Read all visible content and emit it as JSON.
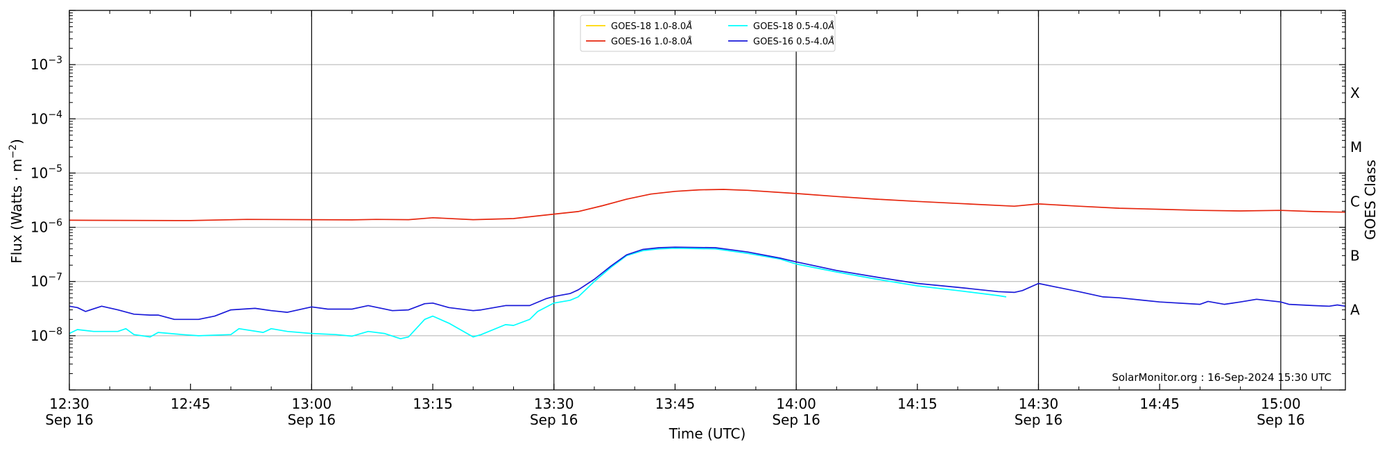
{
  "chart_data": {
    "type": "line",
    "xlabel": "Time (UTC)",
    "ylabel": "Flux (Watts · m",
    "ylabel_exponent": "−2",
    "ylabel_close": ")",
    "y2label": "GOES Class",
    "yscale": "log",
    "ylim": [
      1e-09,
      0.01
    ],
    "xlim": [
      "12:30",
      "15:08"
    ],
    "grid": true,
    "legend_position": "top-center",
    "footer": "SolarMonitor.org : 16-Sep-2024 15:30 UTC",
    "y_ticks": [
      {
        "value": -8,
        "base": "10",
        "exp": "−8"
      },
      {
        "value": -7,
        "base": "10",
        "exp": "−7"
      },
      {
        "value": -6,
        "base": "10",
        "exp": "−6"
      },
      {
        "value": -5,
        "base": "10",
        "exp": "−5"
      },
      {
        "value": -4,
        "base": "10",
        "exp": "−4"
      },
      {
        "value": -3,
        "base": "10",
        "exp": "−3"
      }
    ],
    "x_ticks": [
      {
        "time": "12:30",
        "label": "12:30",
        "sub": "Sep 16",
        "major": true
      },
      {
        "time": "12:45",
        "label": "12:45",
        "sub": "",
        "major": false
      },
      {
        "time": "13:00",
        "label": "13:00",
        "sub": "Sep 16",
        "major": true
      },
      {
        "time": "13:15",
        "label": "13:15",
        "sub": "",
        "major": false
      },
      {
        "time": "13:30",
        "label": "13:30",
        "sub": "Sep 16",
        "major": true
      },
      {
        "time": "13:45",
        "label": "13:45",
        "sub": "",
        "major": false
      },
      {
        "time": "14:00",
        "label": "14:00",
        "sub": "Sep 16",
        "major": true
      },
      {
        "time": "14:15",
        "label": "14:15",
        "sub": "",
        "major": false
      },
      {
        "time": "14:30",
        "label": "14:30",
        "sub": "Sep 16",
        "major": true
      },
      {
        "time": "14:45",
        "label": "14:45",
        "sub": "",
        "major": false
      },
      {
        "time": "15:00",
        "label": "15:00",
        "sub": "Sep 16",
        "major": true
      }
    ],
    "goes_classes": [
      {
        "label": "A",
        "flux": 3e-08
      },
      {
        "label": "B",
        "flux": 3e-07
      },
      {
        "label": "C",
        "flux": 3e-06
      },
      {
        "label": "M",
        "flux": 3e-05
      },
      {
        "label": "X",
        "flux": 0.0003
      }
    ],
    "series": [
      {
        "name": "GOES-18 1.0-8.0",
        "unit": "Å",
        "color": "#ffd700",
        "points": []
      },
      {
        "name": "GOES-16 1.0-8.0",
        "unit": "Å",
        "color": "#e6260e",
        "points": [
          [
            "12:30",
            1.35e-06
          ],
          [
            "12:45",
            1.33e-06
          ],
          [
            "12:52",
            1.4e-06
          ],
          [
            "13:00",
            1.38e-06
          ],
          [
            "13:05",
            1.37e-06
          ],
          [
            "13:08",
            1.4e-06
          ],
          [
            "13:12",
            1.38e-06
          ],
          [
            "13:15",
            1.5e-06
          ],
          [
            "13:20",
            1.38e-06
          ],
          [
            "13:25",
            1.45e-06
          ],
          [
            "13:30",
            1.75e-06
          ],
          [
            "13:33",
            1.95e-06
          ],
          [
            "13:36",
            2.5e-06
          ],
          [
            "13:39",
            3.3e-06
          ],
          [
            "13:42",
            4.1e-06
          ],
          [
            "13:45",
            4.6e-06
          ],
          [
            "13:48",
            4.9e-06
          ],
          [
            "13:51",
            5e-06
          ],
          [
            "13:54",
            4.8e-06
          ],
          [
            "14:00",
            4.2e-06
          ],
          [
            "14:05",
            3.7e-06
          ],
          [
            "14:10",
            3.3e-06
          ],
          [
            "14:15",
            3e-06
          ],
          [
            "14:20",
            2.75e-06
          ],
          [
            "14:27",
            2.45e-06
          ],
          [
            "14:30",
            2.7e-06
          ],
          [
            "14:35",
            2.45e-06
          ],
          [
            "14:40",
            2.25e-06
          ],
          [
            "14:45",
            2.15e-06
          ],
          [
            "14:50",
            2.05e-06
          ],
          [
            "14:55",
            2e-06
          ],
          [
            "15:00",
            2.05e-06
          ],
          [
            "15:04",
            1.95e-06
          ],
          [
            "15:08",
            1.9e-06
          ]
        ]
      },
      {
        "name": "GOES-18 0.5-4.0",
        "unit": "Å",
        "color": "#00ffff",
        "points": [
          [
            "12:30",
            1.1e-08
          ],
          [
            "12:31",
            1.3e-08
          ],
          [
            "12:33",
            1.2e-08
          ],
          [
            "12:36",
            1.2e-08
          ],
          [
            "12:37",
            1.35e-08
          ],
          [
            "12:38",
            1.05e-08
          ],
          [
            "12:40",
            9.5e-09
          ],
          [
            "12:41",
            1.15e-08
          ],
          [
            "12:44",
            1.05e-08
          ],
          [
            "12:46",
            1e-08
          ],
          [
            "12:50",
            1.05e-08
          ],
          [
            "12:51",
            1.35e-08
          ],
          [
            "12:54",
            1.15e-08
          ],
          [
            "12:55",
            1.35e-08
          ],
          [
            "12:57",
            1.2e-08
          ],
          [
            "13:00",
            1.1e-08
          ],
          [
            "13:03",
            1.05e-08
          ],
          [
            "13:05",
            9.8e-09
          ],
          [
            "13:07",
            1.2e-08
          ],
          [
            "13:09",
            1.1e-08
          ],
          [
            "13:11",
            8.8e-09
          ],
          [
            "13:12",
            9.5e-09
          ],
          [
            "13:14",
            2e-08
          ],
          [
            "13:15",
            2.3e-08
          ],
          [
            "13:17",
            1.7e-08
          ],
          [
            "13:20",
            9.5e-09
          ],
          [
            "13:21",
            1.05e-08
          ],
          [
            "13:24",
            1.6e-08
          ],
          [
            "13:25",
            1.55e-08
          ],
          [
            "13:27",
            2e-08
          ],
          [
            "13:28",
            2.8e-08
          ],
          [
            "13:30",
            4e-08
          ],
          [
            "13:32",
            4.5e-08
          ],
          [
            "13:33",
            5.2e-08
          ],
          [
            "13:35",
            1e-07
          ],
          [
            "13:37",
            1.8e-07
          ],
          [
            "13:39",
            3e-07
          ],
          [
            "13:41",
            3.7e-07
          ],
          [
            "13:43",
            4e-07
          ],
          [
            "13:45",
            4.1e-07
          ],
          [
            "13:50",
            4e-07
          ],
          [
            "13:54",
            3.3e-07
          ],
          [
            "13:58",
            2.6e-07
          ],
          [
            "14:00",
            2.1e-07
          ],
          [
            "14:05",
            1.5e-07
          ],
          [
            "14:10",
            1.1e-07
          ],
          [
            "14:15",
            8.3e-08
          ],
          [
            "14:20",
            6.8e-08
          ],
          [
            "14:25",
            5.5e-08
          ],
          [
            "14:26",
            5.2e-08
          ]
        ]
      },
      {
        "name": "GOES-16 0.5-4.0",
        "unit": "Å",
        "color": "#1a1ad9",
        "points": [
          [
            "12:30",
            3.5e-08
          ],
          [
            "12:31",
            3.3e-08
          ],
          [
            "12:32",
            2.8e-08
          ],
          [
            "12:34",
            3.5e-08
          ],
          [
            "12:36",
            3e-08
          ],
          [
            "12:38",
            2.5e-08
          ],
          [
            "12:40",
            2.4e-08
          ],
          [
            "12:41",
            2.4e-08
          ],
          [
            "12:43",
            2e-08
          ],
          [
            "12:46",
            2e-08
          ],
          [
            "12:48",
            2.3e-08
          ],
          [
            "12:50",
            3e-08
          ],
          [
            "12:53",
            3.2e-08
          ],
          [
            "12:55",
            2.9e-08
          ],
          [
            "12:57",
            2.7e-08
          ],
          [
            "13:00",
            3.4e-08
          ],
          [
            "13:02",
            3.1e-08
          ],
          [
            "13:05",
            3.1e-08
          ],
          [
            "13:07",
            3.6e-08
          ],
          [
            "13:10",
            2.9e-08
          ],
          [
            "13:12",
            3e-08
          ],
          [
            "13:14",
            3.9e-08
          ],
          [
            "13:15",
            4e-08
          ],
          [
            "13:17",
            3.3e-08
          ],
          [
            "13:20",
            2.9e-08
          ],
          [
            "13:21",
            3e-08
          ],
          [
            "13:24",
            3.6e-08
          ],
          [
            "13:27",
            3.6e-08
          ],
          [
            "13:29",
            4.8e-08
          ],
          [
            "13:30",
            5.3e-08
          ],
          [
            "13:32",
            6e-08
          ],
          [
            "13:33",
            7e-08
          ],
          [
            "13:35",
            1.1e-07
          ],
          [
            "13:37",
            1.9e-07
          ],
          [
            "13:39",
            3.1e-07
          ],
          [
            "13:41",
            3.9e-07
          ],
          [
            "13:43",
            4.2e-07
          ],
          [
            "13:45",
            4.3e-07
          ],
          [
            "13:50",
            4.2e-07
          ],
          [
            "13:54",
            3.5e-07
          ],
          [
            "13:58",
            2.7e-07
          ],
          [
            "14:00",
            2.3e-07
          ],
          [
            "14:05",
            1.6e-07
          ],
          [
            "14:10",
            1.2e-07
          ],
          [
            "14:15",
            9.2e-08
          ],
          [
            "14:20",
            7.8e-08
          ],
          [
            "14:25",
            6.5e-08
          ],
          [
            "14:27",
            6.3e-08
          ],
          [
            "14:28",
            6.8e-08
          ],
          [
            "14:30",
            9.2e-08
          ],
          [
            "14:32",
            8e-08
          ],
          [
            "14:35",
            6.5e-08
          ],
          [
            "14:38",
            5.2e-08
          ],
          [
            "14:40",
            5e-08
          ],
          [
            "14:45",
            4.2e-08
          ],
          [
            "14:50",
            3.8e-08
          ],
          [
            "14:51",
            4.3e-08
          ],
          [
            "14:53",
            3.8e-08
          ],
          [
            "14:55",
            4.2e-08
          ],
          [
            "14:57",
            4.7e-08
          ],
          [
            "15:00",
            4.2e-08
          ],
          [
            "15:01",
            3.8e-08
          ],
          [
            "15:04",
            3.6e-08
          ],
          [
            "15:06",
            3.5e-08
          ],
          [
            "15:07",
            3.7e-08
          ],
          [
            "15:08",
            3.5e-08
          ]
        ]
      }
    ]
  }
}
